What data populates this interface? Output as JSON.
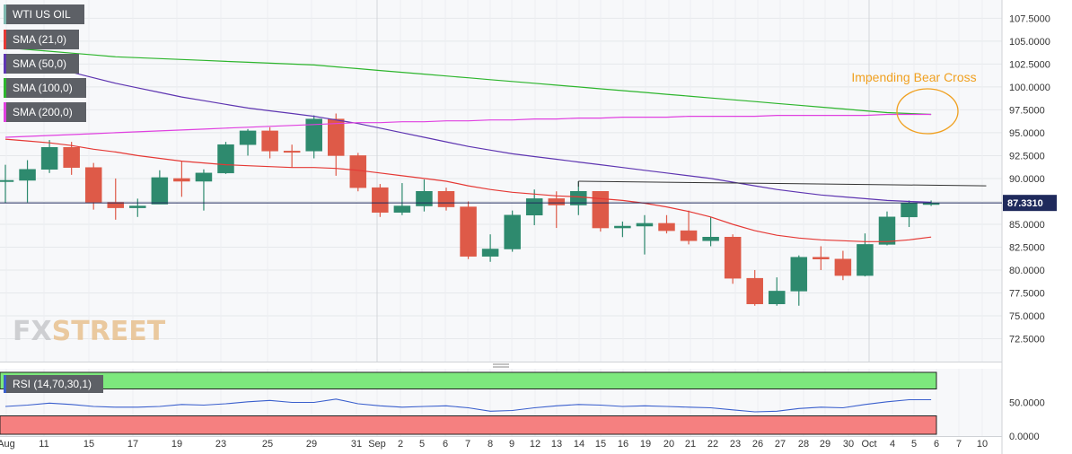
{
  "chart_data": {
    "type": "candlestick",
    "title": "WTI US OIL",
    "annotation": "Impending Bear Cross",
    "current_price_label": "87.3310",
    "current_price": 87.331,
    "price_axis": {
      "ylim": [
        70.0,
        109.5
      ],
      "ticks": [
        "72.5000",
        "75.0000",
        "77.5000",
        "80.0000",
        "82.5000",
        "85.0000",
        "87.5000",
        "90.0000",
        "92.5000",
        "95.0000",
        "97.5000",
        "100.0000",
        "102.5000",
        "105.0000",
        "107.5000"
      ]
    },
    "x_ticks": [
      "Aug",
      "11",
      "15",
      "17",
      "19",
      "23",
      "25",
      "29",
      "31",
      "Sep",
      "2",
      "5",
      "6",
      "7",
      "8",
      "9",
      "12",
      "13",
      "14",
      "15",
      "16",
      "19",
      "20",
      "21",
      "22",
      "23",
      "26",
      "27",
      "28",
      "29",
      "30",
      "Oct",
      "4",
      "5",
      "6",
      "7",
      "10"
    ],
    "candles": [
      {
        "o": 89.8,
        "h": 91.5,
        "l": 87.3,
        "c": 89.8
      },
      {
        "o": 89.8,
        "h": 92.0,
        "l": 87.4,
        "c": 91.0
      },
      {
        "o": 91.0,
        "h": 94.2,
        "l": 90.6,
        "c": 93.4
      },
      {
        "o": 93.4,
        "h": 94.0,
        "l": 90.4,
        "c": 91.2
      },
      {
        "o": 91.2,
        "h": 91.7,
        "l": 86.6,
        "c": 87.4
      },
      {
        "o": 87.4,
        "h": 90.0,
        "l": 85.5,
        "c": 86.8
      },
      {
        "o": 86.8,
        "h": 87.8,
        "l": 85.8,
        "c": 87.0
      },
      {
        "o": 87.2,
        "h": 90.9,
        "l": 87.2,
        "c": 90.1
      },
      {
        "o": 90.0,
        "h": 91.9,
        "l": 88.0,
        "c": 89.7
      },
      {
        "o": 89.7,
        "h": 91.0,
        "l": 86.5,
        "c": 90.6
      },
      {
        "o": 90.6,
        "h": 94.0,
        "l": 90.5,
        "c": 93.7
      },
      {
        "o": 93.7,
        "h": 95.4,
        "l": 92.5,
        "c": 95.2
      },
      {
        "o": 95.2,
        "h": 95.6,
        "l": 92.2,
        "c": 93.0
      },
      {
        "o": 93.0,
        "h": 93.7,
        "l": 91.2,
        "c": 92.9
      },
      {
        "o": 93.0,
        "h": 96.9,
        "l": 92.2,
        "c": 96.5
      },
      {
        "o": 96.5,
        "h": 97.1,
        "l": 90.3,
        "c": 92.5
      },
      {
        "o": 92.5,
        "h": 92.8,
        "l": 88.6,
        "c": 89.0
      },
      {
        "o": 89.0,
        "h": 89.4,
        "l": 85.8,
        "c": 86.3
      },
      {
        "o": 86.3,
        "h": 89.5,
        "l": 86.0,
        "c": 87.0
      },
      {
        "o": 87.0,
        "h": 89.9,
        "l": 86.4,
        "c": 88.6
      },
      {
        "o": 88.6,
        "h": 89.0,
        "l": 86.5,
        "c": 86.9
      },
      {
        "o": 86.9,
        "h": 87.5,
        "l": 81.2,
        "c": 81.5
      },
      {
        "o": 81.5,
        "h": 83.9,
        "l": 80.9,
        "c": 82.3
      },
      {
        "o": 82.3,
        "h": 86.5,
        "l": 82.0,
        "c": 86.0
      },
      {
        "o": 86.0,
        "h": 88.8,
        "l": 84.9,
        "c": 87.8
      },
      {
        "o": 87.8,
        "h": 88.6,
        "l": 84.6,
        "c": 87.1
      },
      {
        "o": 87.1,
        "h": 89.7,
        "l": 86.0,
        "c": 88.6
      },
      {
        "o": 88.6,
        "h": 88.6,
        "l": 84.2,
        "c": 84.6
      },
      {
        "o": 84.6,
        "h": 85.3,
        "l": 83.6,
        "c": 84.8
      },
      {
        "o": 84.8,
        "h": 86.0,
        "l": 81.7,
        "c": 85.1
      },
      {
        "o": 85.1,
        "h": 86.0,
        "l": 84.0,
        "c": 84.3
      },
      {
        "o": 84.3,
        "h": 86.5,
        "l": 82.8,
        "c": 83.2
      },
      {
        "o": 83.2,
        "h": 85.8,
        "l": 82.6,
        "c": 83.6
      },
      {
        "o": 83.6,
        "h": 83.9,
        "l": 78.5,
        "c": 79.1
      },
      {
        "o": 79.1,
        "h": 80.0,
        "l": 76.1,
        "c": 76.3
      },
      {
        "o": 76.3,
        "h": 79.2,
        "l": 76.1,
        "c": 77.7
      },
      {
        "o": 77.7,
        "h": 81.6,
        "l": 76.1,
        "c": 81.4
      },
      {
        "o": 81.4,
        "h": 82.6,
        "l": 80.0,
        "c": 81.2
      },
      {
        "o": 81.2,
        "h": 82.1,
        "l": 78.9,
        "c": 79.4
      },
      {
        "o": 79.4,
        "h": 84.0,
        "l": 79.3,
        "c": 82.8
      },
      {
        "o": 82.8,
        "h": 86.4,
        "l": 82.7,
        "c": 85.8
      },
      {
        "o": 85.8,
        "h": 87.6,
        "l": 84.7,
        "c": 87.3
      },
      {
        "o": 87.3,
        "h": 87.6,
        "l": 87.0,
        "c": 87.3
      }
    ],
    "series": [
      {
        "name": "SMA (21,0)",
        "color": "#e53935",
        "values": [
          94.3,
          94.1,
          93.9,
          93.6,
          93.2,
          92.9,
          92.5,
          92.2,
          91.9,
          91.7,
          91.5,
          91.4,
          91.3,
          91.2,
          91.2,
          91.1,
          90.9,
          90.6,
          90.3,
          90.0,
          89.7,
          89.2,
          88.8,
          88.5,
          88.3,
          88.1,
          88.0,
          87.8,
          87.6,
          87.3,
          86.9,
          86.4,
          85.8,
          85.0,
          84.3,
          83.8,
          83.5,
          83.3,
          83.2,
          83.1,
          83.1,
          83.3,
          83.6
        ]
      },
      {
        "name": "SMA (50,0)",
        "color": "#5e35b1",
        "values": [
          103.4,
          102.8,
          102.2,
          101.6,
          101.0,
          100.4,
          99.9,
          99.4,
          98.9,
          98.5,
          98.1,
          97.7,
          97.4,
          97.1,
          96.8,
          96.4,
          96.0,
          95.5,
          95.0,
          94.5,
          94.0,
          93.5,
          93.1,
          92.7,
          92.4,
          92.1,
          91.8,
          91.5,
          91.2,
          90.9,
          90.6,
          90.3,
          90.0,
          89.6,
          89.2,
          88.8,
          88.5,
          88.2,
          88.0,
          87.8,
          87.6,
          87.5,
          87.4
        ]
      },
      {
        "name": "SMA (100,0)",
        "color": "#2db52d",
        "values": [
          104.3,
          104.1,
          103.9,
          103.7,
          103.5,
          103.3,
          103.2,
          103.1,
          103.0,
          102.9,
          102.8,
          102.7,
          102.6,
          102.5,
          102.4,
          102.2,
          102.0,
          101.8,
          101.6,
          101.4,
          101.2,
          101.0,
          100.8,
          100.6,
          100.4,
          100.2,
          100.0,
          99.8,
          99.6,
          99.4,
          99.2,
          99.0,
          98.8,
          98.6,
          98.4,
          98.2,
          98.0,
          97.8,
          97.6,
          97.4,
          97.2,
          97.1,
          97.0
        ]
      },
      {
        "name": "SMA (200,0)",
        "color": "#e040e0",
        "values": [
          94.5,
          94.6,
          94.7,
          94.8,
          94.9,
          95.0,
          95.1,
          95.2,
          95.3,
          95.4,
          95.5,
          95.6,
          95.7,
          95.8,
          95.9,
          96.0,
          96.1,
          96.1,
          96.2,
          96.2,
          96.3,
          96.3,
          96.4,
          96.4,
          96.5,
          96.5,
          96.6,
          96.6,
          96.7,
          96.7,
          96.7,
          96.8,
          96.8,
          96.8,
          96.8,
          96.9,
          96.9,
          96.9,
          96.9,
          96.9,
          97.0,
          97.0,
          97.0
        ]
      }
    ],
    "trendline": {
      "from": {
        "index": 26,
        "price": 89.7
      },
      "to": {
        "index": 44.5,
        "price": 89.2
      }
    },
    "rsi": {
      "name": "RSI (14,70,30,1)",
      "ylim": [
        0,
        100
      ],
      "ticks": [
        "50.0000",
        "0.0000"
      ],
      "upper": 70,
      "lower": 30,
      "values": [
        44,
        46,
        49,
        47,
        44,
        43,
        43,
        44,
        47,
        46,
        48,
        51,
        53,
        50,
        50,
        55,
        48,
        45,
        43,
        44,
        45,
        42,
        37,
        38,
        42,
        45,
        47,
        46,
        44,
        45,
        44,
        43,
        42,
        39,
        36,
        37,
        41,
        43,
        42,
        47,
        51,
        54,
        54
      ]
    }
  },
  "legend": {
    "title": "WTI US OIL",
    "items": [
      {
        "label": "SMA (21,0)",
        "color": "#e53935"
      },
      {
        "label": "SMA (50,0)",
        "color": "#5e35b1"
      },
      {
        "label": "SMA (100,0)",
        "color": "#2db52d"
      },
      {
        "label": "SMA (200,0)",
        "color": "#e040e0"
      }
    ]
  },
  "watermark": {
    "part1": "FX",
    "part2": "STREET"
  }
}
